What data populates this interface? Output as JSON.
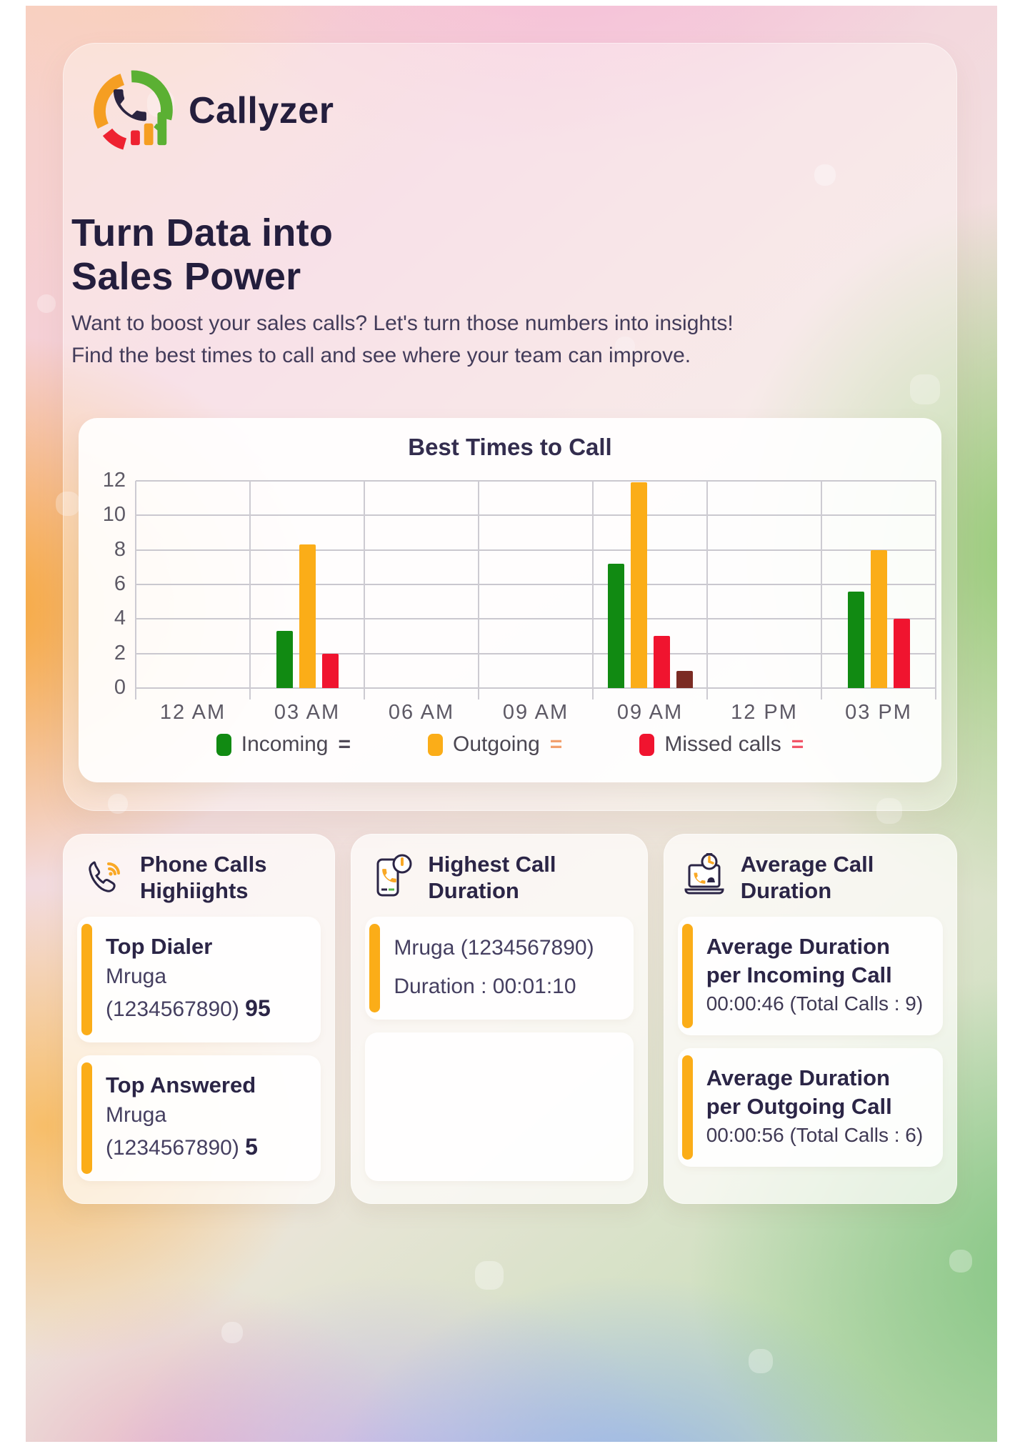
{
  "brand": {
    "name": "Callyzer"
  },
  "hero": {
    "title_line1": "Turn Data into",
    "title_line2": "Sales Power",
    "subtitle_line1": "Want to boost your sales calls? Let's turn those numbers into insights!",
    "subtitle_line2": "Find the best times to call and see where your team can improve."
  },
  "chart_data": {
    "type": "bar",
    "title": "Best Times to Call",
    "categories": [
      "12 AM",
      "03 AM",
      "06 AM",
      "09 AM",
      "09 AM",
      "12 PM",
      "03 PM"
    ],
    "series": [
      {
        "name": "Incoming",
        "color": "#118A12",
        "values": [
          0,
          3.3,
          0,
          0,
          7.2,
          0,
          5.6
        ]
      },
      {
        "name": "Outgoing",
        "color": "#FBAD18",
        "values": [
          0,
          8.3,
          0,
          0,
          11.9,
          0,
          8
        ]
      },
      {
        "name": "Missed calls",
        "color": "#F0142F",
        "values": [
          0,
          2,
          0,
          0,
          3,
          0,
          4
        ]
      },
      {
        "name": "",
        "color": "#7B2B24",
        "values": [
          0,
          0,
          0,
          0,
          1,
          0,
          0
        ]
      }
    ],
    "ylim": [
      0,
      12
    ],
    "yticks": [
      0,
      2,
      4,
      6,
      8,
      10,
      12
    ],
    "grid": true,
    "legend_position": "bottom",
    "legend": [
      {
        "label": "Incoming",
        "swatch": "#118A12",
        "eq": "=",
        "eq_color": "#4f4a57"
      },
      {
        "label": "Outgoing",
        "swatch": "#FBAD18",
        "eq": "=",
        "eq_color": "#F2A06E"
      },
      {
        "label": "Missed calls",
        "swatch": "#F0142F",
        "eq": "=",
        "eq_color": "#F25568"
      }
    ]
  },
  "cards": [
    {
      "title_line1": "Phone Calls",
      "title_line2": "Highiights",
      "icon": "phone-waves-icon",
      "items": [
        {
          "heading": "Top Dialer",
          "line1": "Mruga",
          "line2": "(1234567890)",
          "value": "95"
        },
        {
          "heading": "Top Answered",
          "line1": "Mruga",
          "line2": "(1234567890)",
          "value": "5"
        }
      ]
    },
    {
      "title_line1": "Highest Call",
      "title_line2": "Duration",
      "icon": "phone-clock-icon",
      "items": [
        {
          "line1": "Mruga (1234567890)",
          "line2": "Duration : 00:01:10"
        }
      ]
    },
    {
      "title_line1": "Average Call",
      "title_line2": "Duration",
      "icon": "laptop-clock-icon",
      "items": [
        {
          "heading_line1": "Average Duration",
          "heading_line2": "per Incoming Call",
          "value_line": "00:00:46 (Total Calls : 9)"
        },
        {
          "heading_line1": "Average Duration",
          "heading_line2": "per Outgoing Call",
          "value_line": "00:00:56 (Total Calls : 6)"
        }
      ]
    }
  ],
  "theme": {
    "accent_orange": "#FBAD18",
    "ink": "#241e3d",
    "grid_gray": "#cac8cf"
  }
}
